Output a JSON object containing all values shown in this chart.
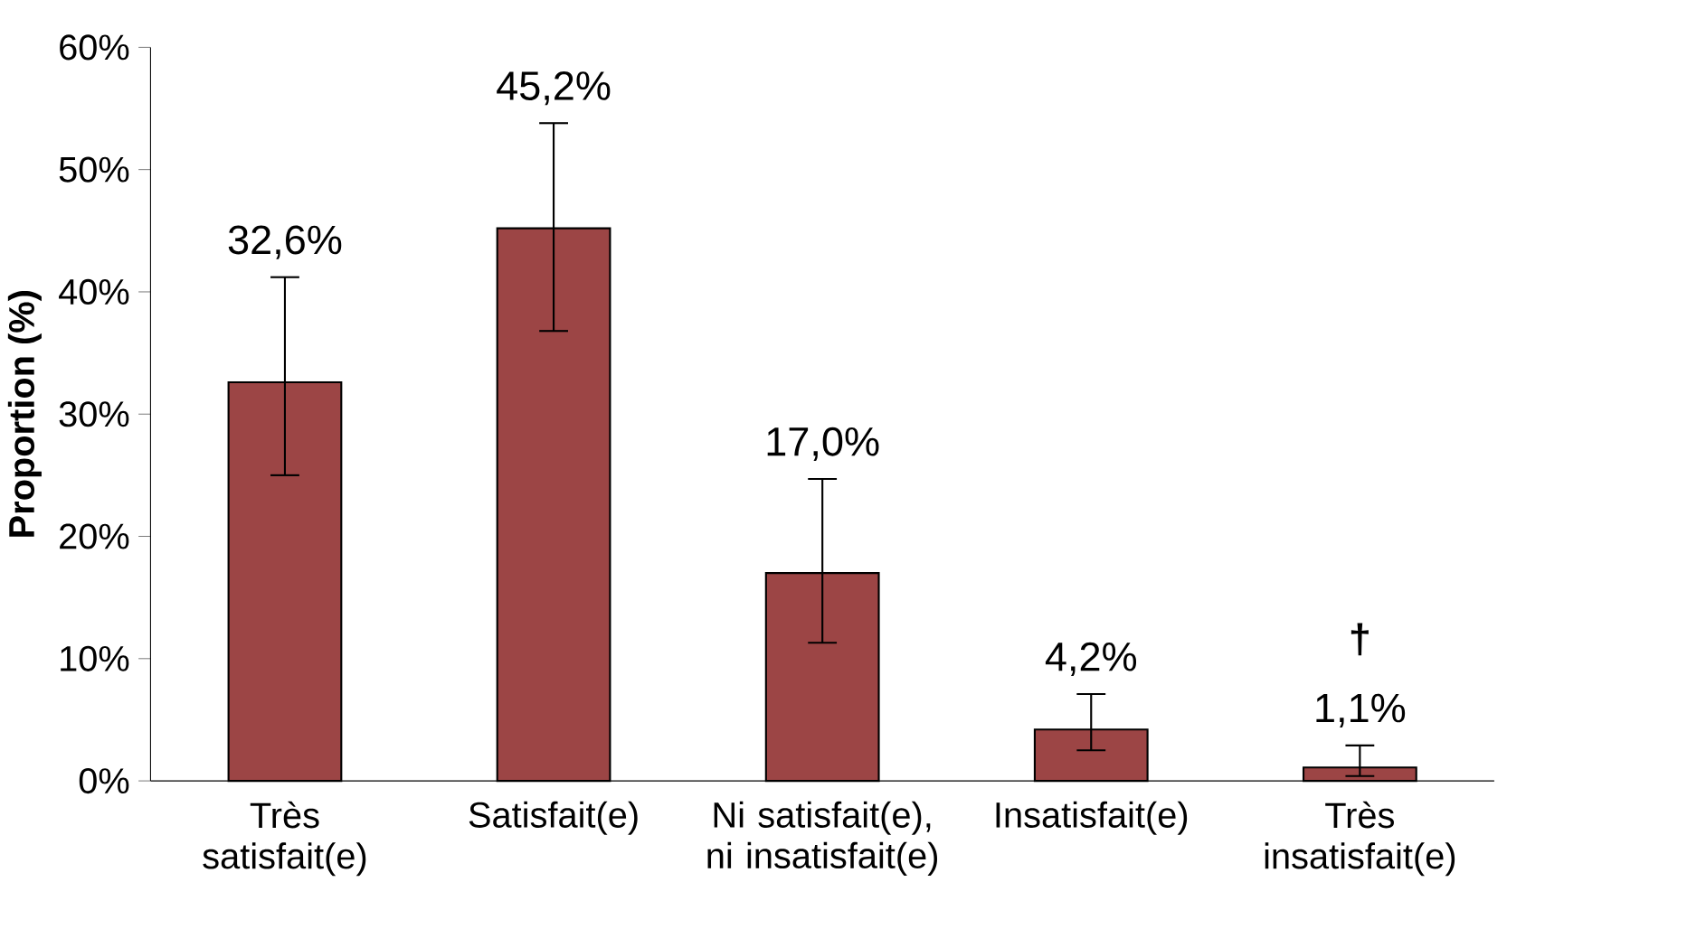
{
  "chart_data": {
    "type": "bar",
    "ylabel": "**Proportion (%)**",
    "categories": [
      "Très satisfait(e)",
      "Satisfait(e)",
      "Ni satisfait(e), ni insatisfait(e)",
      "Insatisfait(e)",
      "Très insatisfait(e)"
    ],
    "values": [
      32.6,
      45.2,
      17.0,
      4.2,
      1.1
    ],
    "errors": [
      [
        25.0,
        41.2
      ],
      [
        36.8,
        53.8
      ],
      [
        11.3,
        24.7
      ],
      [
        2.5,
        7.1
      ],
      [
        0.4,
        2.9
      ]
    ],
    "value_labels": [
      "32,6%",
      "45,2%",
      "17,0%",
      "4,2%",
      "1,1%"
    ],
    "color": "#9c4545",
    "ylim": [
      0,
      60
    ],
    "yticks": [
      {
        "value": 0,
        "label": "0%"
      },
      {
        "value": 10,
        "label": "10%"
      },
      {
        "value": 20,
        "label": "20%"
      },
      {
        "value": 30,
        "label": "30%"
      },
      {
        "value": 40,
        "label": "40%"
      },
      {
        "value": 50,
        "label": "50%"
      },
      {
        "value": 60,
        "label": "60%"
      }
    ],
    "annotations": [
      "†"
    ],
    "grid": false
  }
}
